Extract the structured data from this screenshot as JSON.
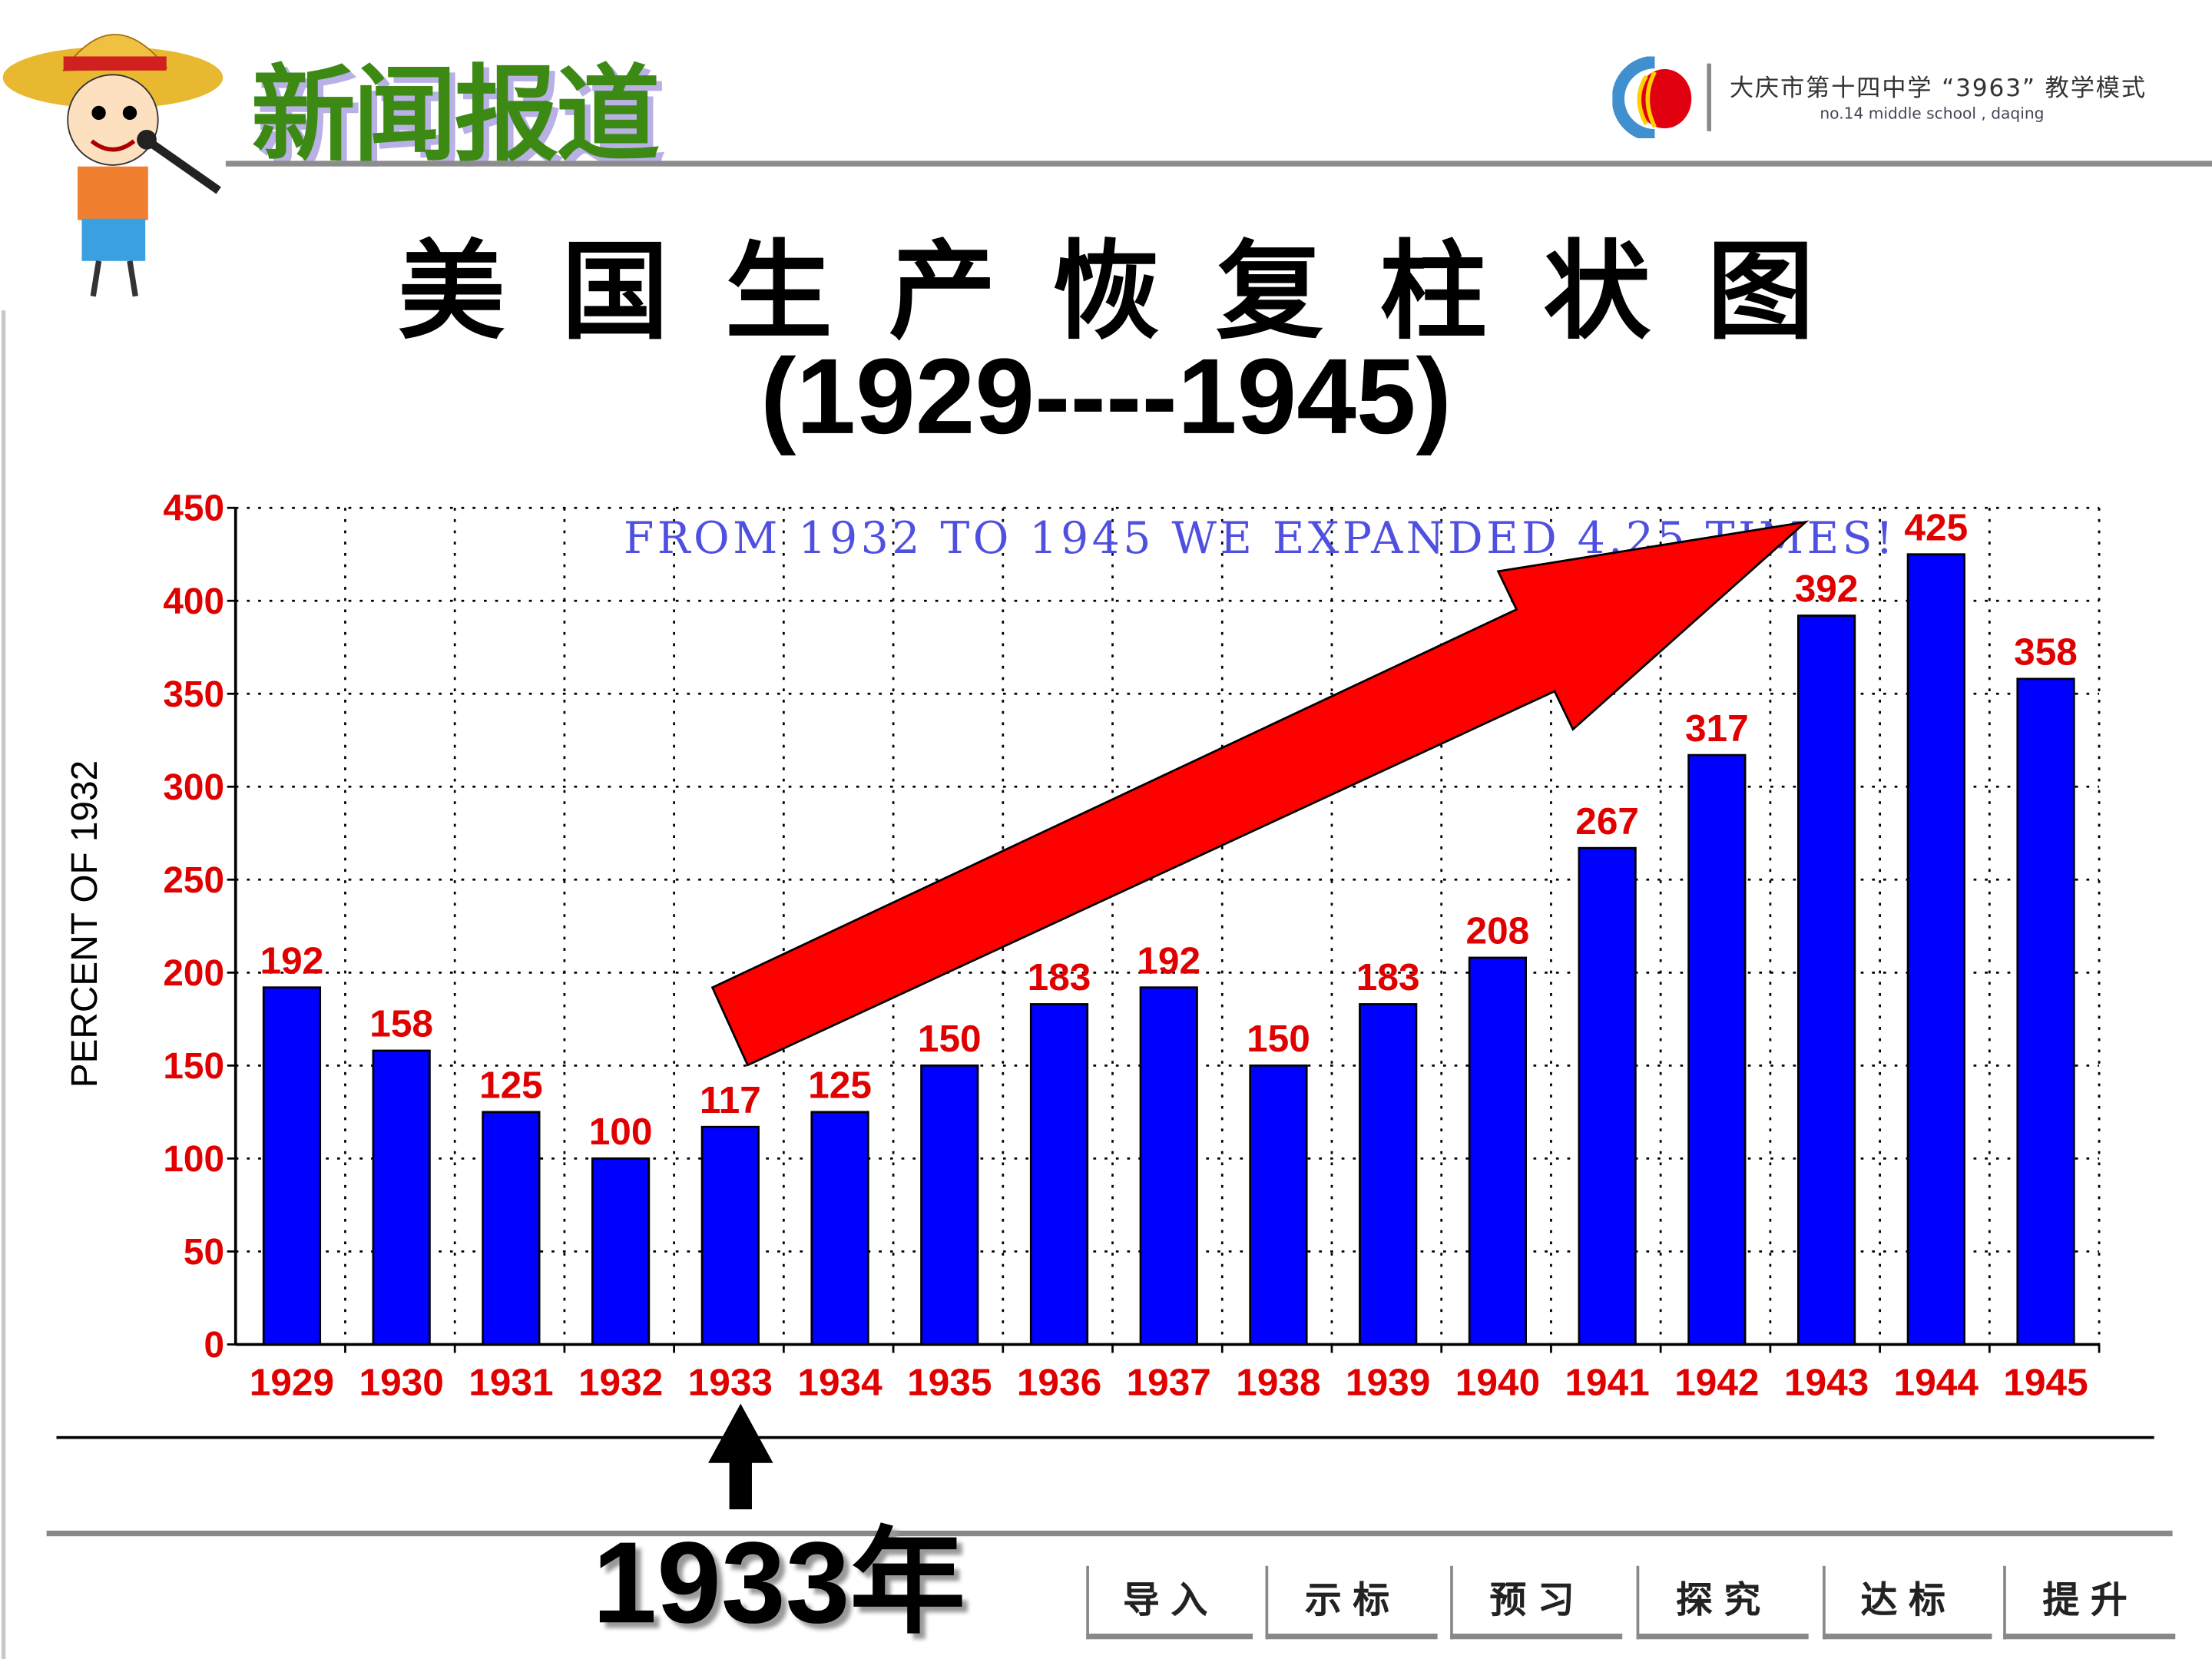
{
  "header": {
    "title": "新闻报道",
    "logo_text": "大庆市第十四中学 “3963” 教学模式",
    "logo_subtext": "no.14 middle school , daqing"
  },
  "title_line1": "美国生产恢复柱状图",
  "title_line2": "(1929----1945)",
  "annotation": "1933年",
  "nav": [
    "导入",
    "示标",
    "预习",
    "探究",
    "达标",
    "提升"
  ],
  "colors": {
    "bar": "#0000ff",
    "label": "#ff0000",
    "arrow": "#ff0000",
    "banner": "#5050e0",
    "title_green": "#3c8a14"
  },
  "chart_data": {
    "type": "bar",
    "title": "美国生产恢复柱状图 (1929----1945)",
    "xlabel": "",
    "ylabel": "PERCENT OF 1932",
    "categories": [
      "1929",
      "1930",
      "1931",
      "1932",
      "1933",
      "1934",
      "1935",
      "1936",
      "1937",
      "1938",
      "1939",
      "1940",
      "1941",
      "1942",
      "1943",
      "1944",
      "1945"
    ],
    "values": [
      192,
      158,
      125,
      100,
      117,
      125,
      150,
      183,
      192,
      150,
      183,
      208,
      267,
      317,
      392,
      425,
      358
    ],
    "ylim": [
      0,
      450
    ],
    "yticks": [
      0,
      50,
      100,
      150,
      200,
      250,
      300,
      350,
      400,
      450
    ],
    "grid": true,
    "banner": "FROM 1932 TO 1945 WE EXPANDED 4.25 TIMES!"
  }
}
